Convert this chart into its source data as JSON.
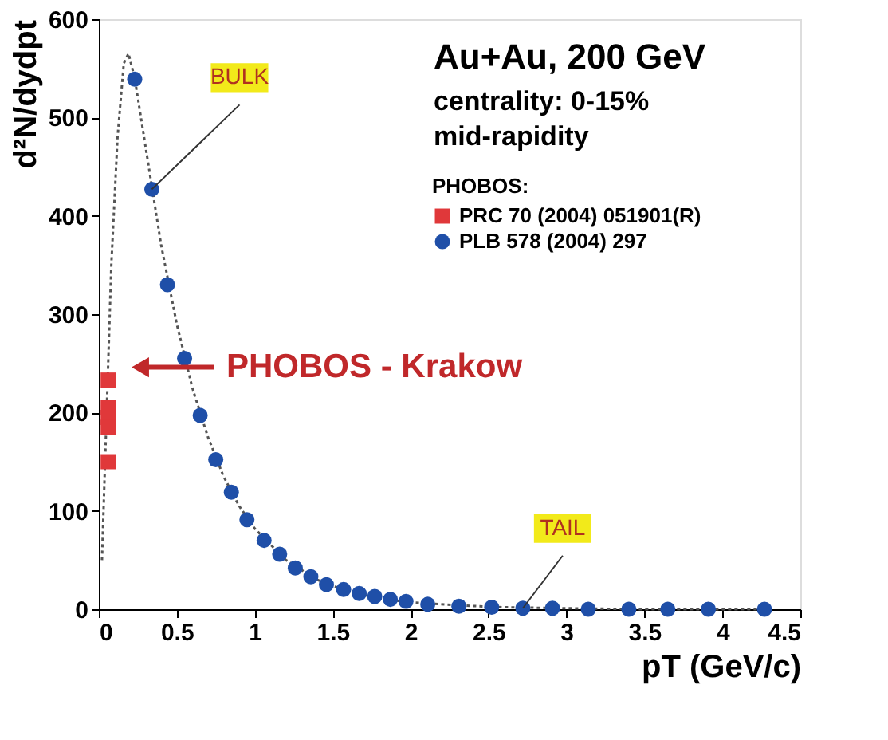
{
  "chart_data": {
    "type": "scatter",
    "xlabel": "pT (GeV/c)",
    "ylabel": "d²N/dydpt",
    "legend_title": "PHOBOS:",
    "legend": "top right",
    "grid": false,
    "xlim": [
      0,
      4.5
    ],
    "xticks": [
      0,
      0.5,
      1,
      1.5,
      2,
      2.5,
      3,
      3.5,
      4,
      4.5
    ],
    "ylim": [
      0,
      600
    ],
    "yticks": [
      0,
      100,
      200,
      300,
      400,
      500,
      600
    ],
    "series": [
      {
        "type": "line",
        "color": "#555555",
        "line_style": "dotted",
        "marker": "none",
        "x": [
          0.02,
          0.05,
          0.08,
          0.12,
          0.16,
          0.19,
          0.23,
          0.3,
          0.4,
          0.5,
          0.6,
          0.7,
          0.8,
          0.9,
          1.0,
          1.2,
          1.4,
          1.6,
          1.8,
          2.0,
          2.3,
          2.6,
          3.0,
          3.5,
          4.0,
          4.3
        ],
        "values": [
          50,
          200,
          350,
          480,
          555,
          565,
          540,
          470,
          370,
          290,
          225,
          175,
          135,
          105,
          82,
          50,
          30,
          18,
          11,
          7,
          4,
          2,
          1,
          0,
          0,
          0
        ]
      },
      {
        "name": "PRC 70 (2004) 051901(R)",
        "color": "#e0383a",
        "marker": "square",
        "x": [
          0.06,
          0.06,
          0.06,
          0.06,
          0.06
        ],
        "values": [
          233,
          205,
          195,
          185,
          150
        ]
      },
      {
        "name": "PLB 578 (2004) 297",
        "color": "#1f4fa8",
        "marker": "circle",
        "x": [
          0.23,
          0.34,
          0.44,
          0.55,
          0.65,
          0.75,
          0.85,
          0.95,
          1.06,
          1.16,
          1.26,
          1.36,
          1.46,
          1.57,
          1.67,
          1.77,
          1.87,
          1.97,
          2.11,
          2.31,
          2.52,
          2.72,
          2.91,
          3.14,
          3.4,
          3.65,
          3.91,
          4.27
        ],
        "values": [
          539,
          427,
          330,
          255,
          197,
          152,
          119,
          91,
          70,
          56,
          42,
          33,
          25,
          20,
          16,
          13,
          10,
          8,
          5,
          3,
          2,
          1,
          1,
          0,
          0,
          0,
          0,
          0
        ]
      }
    ],
    "annotations": [
      "Au+Au, 200 GeV",
      "centrality: 0-15%",
      "mid-rapidity",
      {
        "text": "BULK",
        "x": 0.34,
        "y": 427
      },
      "PHOBOS - Krakow",
      {
        "text": "TAIL",
        "x": 2.72,
        "y": 1
      }
    ]
  }
}
